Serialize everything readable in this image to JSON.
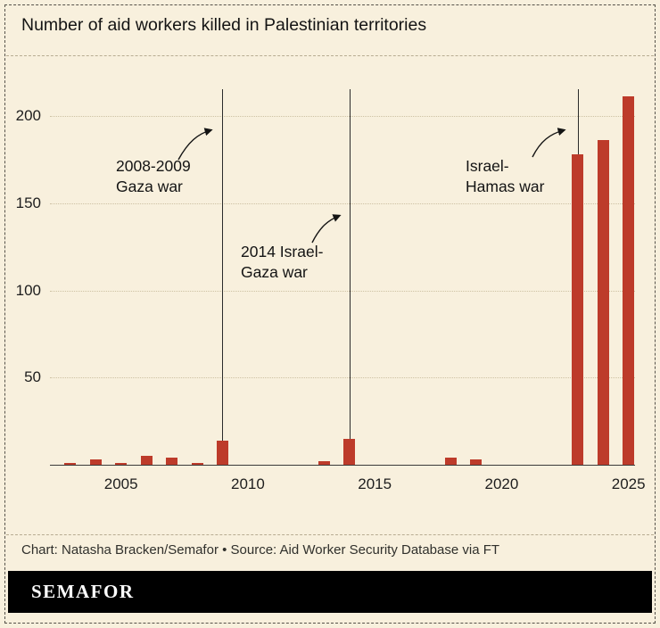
{
  "chart_data": {
    "type": "bar",
    "title": "Number of aid workers killed in Palestinian territories",
    "xlabel": "",
    "ylabel": "",
    "x": [
      2003,
      2004,
      2005,
      2006,
      2007,
      2008,
      2009,
      2010,
      2011,
      2012,
      2013,
      2014,
      2015,
      2016,
      2017,
      2018,
      2019,
      2020,
      2021,
      2022,
      2023,
      2024,
      2025
    ],
    "values": [
      1,
      3,
      1,
      5,
      4,
      1,
      14,
      0,
      0,
      0,
      2,
      15,
      0,
      0,
      0,
      4,
      3,
      0,
      0,
      0,
      178,
      186,
      211
    ],
    "yticks": [
      50,
      100,
      150,
      200
    ],
    "xticks": [
      2005,
      2010,
      2015,
      2020,
      2025
    ],
    "ylim": [
      0,
      215
    ],
    "xlim": [
      2002.2,
      2025.8
    ],
    "grid": "dotted horizontal",
    "legend": "none",
    "bar_color": "#bd3b2a",
    "annotations": [
      {
        "year": 2009,
        "label": [
          "2008-2009",
          "Gaza war"
        ]
      },
      {
        "year": 2014,
        "label": [
          "2014 Israel-",
          "Gaza war"
        ]
      },
      {
        "year": 2023,
        "label": [
          "Israel-",
          "Hamas war"
        ]
      }
    ]
  },
  "footer": {
    "credit": "Chart: Natasha Bracken/Semafor • Source: Aid Worker Security Database via FT",
    "logo": "SEMAFOR"
  },
  "colors": {
    "background": "#f8f0dd",
    "bar": "#bd3b2a",
    "grid": "#cdc1a3",
    "event_line": "#2b2b2b",
    "text": "#141414",
    "logo_bar": "#000000"
  }
}
